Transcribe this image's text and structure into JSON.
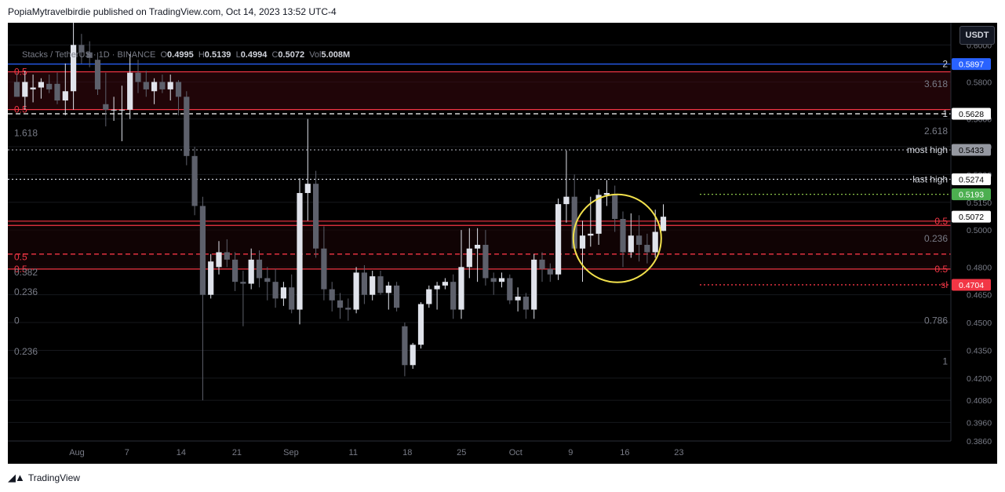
{
  "header": {
    "text": "PopiaMytravelbirdie published on TradingView.com, Oct 14, 2023 13:52 UTC-4"
  },
  "legend": {
    "symbol": "Stacks / TetherUS · 1D · BINANCE",
    "o_label": "O",
    "o": "0.4995",
    "h_label": "H",
    "h": "0.5139",
    "l_label": "L",
    "l": "0.4994",
    "c_label": "C",
    "c": "0.5072",
    "vol_label": "Vol",
    "vol": "5.008M"
  },
  "currency_button": "USDT",
  "footer": {
    "brand": "TradingView"
  },
  "colors": {
    "up": "#e0e3eb",
    "down": "#5d606b",
    "accent_red": "#f23645",
    "accent_blue": "#2962ff",
    "accent_green": "#4caf50",
    "circle": "#f2e14c",
    "background": "#000000"
  },
  "price_badges": [
    {
      "value": "0.5897",
      "color": "#2962ff",
      "text_color": "#ffffff"
    },
    {
      "value": "0.5628",
      "color": "#ffffff",
      "text_color": "#000000"
    },
    {
      "value": "0.5433",
      "color": "#9598a1",
      "text_color": "#000000"
    },
    {
      "value": "0.5274",
      "color": "#ffffff",
      "text_color": "#000000"
    },
    {
      "value": "0.5193",
      "color": "#4caf50",
      "text_color": "#ffffff"
    },
    {
      "value": "0.5072",
      "color": "#ffffff",
      "text_color": "#000000"
    },
    {
      "value": "0.4704",
      "color": "#f23645",
      "text_color": "#ffffff"
    }
  ],
  "level_labels": [
    {
      "text": "most high",
      "price": 0.5433
    },
    {
      "text": "last high",
      "price": 0.5274
    }
  ],
  "fib_labels_left": [
    {
      "text": "0.5",
      "price": 0.5855,
      "color": "#f23645"
    },
    {
      "text": "0.5",
      "price": 0.5651,
      "color": "#f23645"
    },
    {
      "text": "1.618",
      "price": 0.5525,
      "color": "#787b86"
    },
    {
      "text": "0.5",
      "price": 0.4855,
      "color": "#f23645"
    },
    {
      "text": "0.5",
      "price": 0.4789,
      "color": "#f23645"
    },
    {
      "text": "0.382",
      "price": 0.4772,
      "color": "#787b86"
    },
    {
      "text": "0.236",
      "price": 0.4665,
      "color": "#787b86"
    },
    {
      "text": "0",
      "price": 0.451,
      "color": "#787b86"
    },
    {
      "text": "0.236",
      "price": 0.4343,
      "color": "#787b86"
    }
  ],
  "fib_labels_right": [
    {
      "text": "2",
      "price": 0.5897,
      "color": "#d1d4dc"
    },
    {
      "text": "3.618",
      "price": 0.579,
      "color": "#787b86"
    },
    {
      "text": "1",
      "price": 0.5628,
      "color": "#d1d4dc"
    },
    {
      "text": "2.618",
      "price": 0.5535,
      "color": "#787b86"
    },
    {
      "text": "0.5",
      "price": 0.5048,
      "color": "#f23645"
    },
    {
      "text": "0.236",
      "price": 0.4955,
      "color": "#787b86"
    },
    {
      "text": "0.5",
      "price": 0.4789,
      "color": "#f23645"
    },
    {
      "text": "sl",
      "price": 0.4704,
      "color": "#f23645"
    },
    {
      "text": "0.786",
      "price": 0.451,
      "color": "#787b86"
    },
    {
      "text": "1",
      "price": 0.429,
      "color": "#787b86"
    }
  ],
  "chart_data": {
    "type": "candlestick",
    "symbol": "Stacks / TetherUS",
    "interval": "1D",
    "exchange": "BINANCE",
    "y_axis_ticks": [
      "0.6000",
      "0.5800",
      "0.5600",
      "0.5450",
      "0.5300",
      "0.5150",
      "0.5000",
      "0.4800",
      "0.4650",
      "0.4500",
      "0.4350",
      "0.4200",
      "0.4080",
      "0.3960",
      "0.3860"
    ],
    "x_axis_ticks": [
      "Aug",
      "7",
      "14",
      "21",
      "Sep",
      "11",
      "18",
      "25",
      "Oct",
      "9",
      "16",
      "23"
    ],
    "ylim": [
      0.386,
      0.612
    ],
    "horizontal_levels": [
      {
        "price": 0.5897,
        "style": "solid",
        "color": "#2962ff"
      },
      {
        "price": 0.5855,
        "style": "solid",
        "color": "#f23645"
      },
      {
        "price": 0.5651,
        "style": "solid",
        "color": "#f23645"
      },
      {
        "price": 0.5628,
        "style": "dashed",
        "color": "#ffffff"
      },
      {
        "price": 0.5433,
        "style": "dotted",
        "color": "#9598a1"
      },
      {
        "price": 0.5274,
        "style": "dotted",
        "color": "#d1d4dc"
      },
      {
        "price": 0.5193,
        "style": "dotted",
        "color": "#8bc34a"
      },
      {
        "price": 0.5048,
        "style": "solid",
        "color": "#f23645"
      },
      {
        "price": 0.5025,
        "style": "solid",
        "color": "#f23645"
      },
      {
        "price": 0.487,
        "style": "dashed",
        "color": "#f23645"
      },
      {
        "price": 0.4789,
        "style": "solid",
        "color": "#f23645"
      },
      {
        "price": 0.4704,
        "style": "dotted",
        "color": "#f23645"
      }
    ],
    "candles": [
      {
        "o": 0.58,
        "h": 0.585,
        "l": 0.572,
        "c": 0.572
      },
      {
        "o": 0.572,
        "h": 0.586,
        "l": 0.565,
        "c": 0.58
      },
      {
        "o": 0.576,
        "h": 0.584,
        "l": 0.569,
        "c": 0.577
      },
      {
        "o": 0.577,
        "h": 0.582,
        "l": 0.571,
        "c": 0.58
      },
      {
        "o": 0.579,
        "h": 0.584,
        "l": 0.574,
        "c": 0.576
      },
      {
        "o": 0.579,
        "h": 0.585,
        "l": 0.568,
        "c": 0.57
      },
      {
        "o": 0.57,
        "h": 0.59,
        "l": 0.562,
        "c": 0.575
      },
      {
        "o": 0.575,
        "h": 0.615,
        "l": 0.565,
        "c": 0.6
      },
      {
        "o": 0.6,
        "h": 0.606,
        "l": 0.59,
        "c": 0.596
      },
      {
        "o": 0.596,
        "h": 0.602,
        "l": 0.588,
        "c": 0.593
      },
      {
        "o": 0.592,
        "h": 0.596,
        "l": 0.573,
        "c": 0.576
      },
      {
        "o": 0.568,
        "h": 0.585,
        "l": 0.556,
        "c": 0.565
      },
      {
        "o": 0.565,
        "h": 0.572,
        "l": 0.559,
        "c": 0.565
      },
      {
        "o": 0.565,
        "h": 0.578,
        "l": 0.548,
        "c": 0.565
      },
      {
        "o": 0.565,
        "h": 0.595,
        "l": 0.56,
        "c": 0.585
      },
      {
        "o": 0.585,
        "h": 0.592,
        "l": 0.574,
        "c": 0.58
      },
      {
        "o": 0.58,
        "h": 0.586,
        "l": 0.572,
        "c": 0.576
      },
      {
        "o": 0.575,
        "h": 0.582,
        "l": 0.568,
        "c": 0.58
      },
      {
        "o": 0.58,
        "h": 0.584,
        "l": 0.574,
        "c": 0.576
      },
      {
        "o": 0.576,
        "h": 0.584,
        "l": 0.57,
        "c": 0.58
      },
      {
        "o": 0.58,
        "h": 0.581,
        "l": 0.562,
        "c": 0.572
      },
      {
        "o": 0.572,
        "h": 0.575,
        "l": 0.535,
        "c": 0.54
      },
      {
        "o": 0.54,
        "h": 0.545,
        "l": 0.508,
        "c": 0.513
      },
      {
        "o": 0.513,
        "h": 0.518,
        "l": 0.408,
        "c": 0.465
      },
      {
        "o": 0.465,
        "h": 0.487,
        "l": 0.463,
        "c": 0.483
      },
      {
        "o": 0.48,
        "h": 0.494,
        "l": 0.476,
        "c": 0.488
      },
      {
        "o": 0.488,
        "h": 0.495,
        "l": 0.48,
        "c": 0.484
      },
      {
        "o": 0.484,
        "h": 0.488,
        "l": 0.467,
        "c": 0.472
      },
      {
        "o": 0.472,
        "h": 0.478,
        "l": 0.448,
        "c": 0.471
      },
      {
        "o": 0.471,
        "h": 0.49,
        "l": 0.468,
        "c": 0.484
      },
      {
        "o": 0.484,
        "h": 0.489,
        "l": 0.469,
        "c": 0.474
      },
      {
        "o": 0.474,
        "h": 0.48,
        "l": 0.462,
        "c": 0.472
      },
      {
        "o": 0.472,
        "h": 0.479,
        "l": 0.458,
        "c": 0.463
      },
      {
        "o": 0.463,
        "h": 0.472,
        "l": 0.459,
        "c": 0.469
      },
      {
        "o": 0.469,
        "h": 0.476,
        "l": 0.455,
        "c": 0.457
      },
      {
        "o": 0.457,
        "h": 0.528,
        "l": 0.449,
        "c": 0.52
      },
      {
        "o": 0.52,
        "h": 0.56,
        "l": 0.505,
        "c": 0.525
      },
      {
        "o": 0.525,
        "h": 0.532,
        "l": 0.485,
        "c": 0.49
      },
      {
        "o": 0.49,
        "h": 0.502,
        "l": 0.462,
        "c": 0.468
      },
      {
        "o": 0.468,
        "h": 0.472,
        "l": 0.456,
        "c": 0.462
      },
      {
        "o": 0.462,
        "h": 0.466,
        "l": 0.452,
        "c": 0.458
      },
      {
        "o": 0.458,
        "h": 0.463,
        "l": 0.451,
        "c": 0.457
      },
      {
        "o": 0.457,
        "h": 0.48,
        "l": 0.455,
        "c": 0.477
      },
      {
        "o": 0.477,
        "h": 0.481,
        "l": 0.46,
        "c": 0.465
      },
      {
        "o": 0.465,
        "h": 0.478,
        "l": 0.462,
        "c": 0.475
      },
      {
        "o": 0.475,
        "h": 0.478,
        "l": 0.465,
        "c": 0.466
      },
      {
        "o": 0.466,
        "h": 0.472,
        "l": 0.457,
        "c": 0.47
      },
      {
        "o": 0.47,
        "h": 0.472,
        "l": 0.456,
        "c": 0.458
      },
      {
        "o": 0.448,
        "h": 0.45,
        "l": 0.421,
        "c": 0.427
      },
      {
        "o": 0.427,
        "h": 0.439,
        "l": 0.425,
        "c": 0.438
      },
      {
        "o": 0.438,
        "h": 0.461,
        "l": 0.436,
        "c": 0.46
      },
      {
        "o": 0.46,
        "h": 0.47,
        "l": 0.458,
        "c": 0.468
      },
      {
        "o": 0.468,
        "h": 0.472,
        "l": 0.457,
        "c": 0.47
      },
      {
        "o": 0.47,
        "h": 0.474,
        "l": 0.468,
        "c": 0.472
      },
      {
        "o": 0.472,
        "h": 0.476,
        "l": 0.452,
        "c": 0.457
      },
      {
        "o": 0.457,
        "h": 0.5,
        "l": 0.452,
        "c": 0.48
      },
      {
        "o": 0.48,
        "h": 0.501,
        "l": 0.474,
        "c": 0.49
      },
      {
        "o": 0.49,
        "h": 0.501,
        "l": 0.472,
        "c": 0.492
      },
      {
        "o": 0.492,
        "h": 0.5,
        "l": 0.47,
        "c": 0.474
      },
      {
        "o": 0.474,
        "h": 0.477,
        "l": 0.465,
        "c": 0.472
      },
      {
        "o": 0.472,
        "h": 0.477,
        "l": 0.469,
        "c": 0.474
      },
      {
        "o": 0.474,
        "h": 0.476,
        "l": 0.46,
        "c": 0.462
      },
      {
        "o": 0.462,
        "h": 0.469,
        "l": 0.456,
        "c": 0.464
      },
      {
        "o": 0.464,
        "h": 0.466,
        "l": 0.452,
        "c": 0.457
      },
      {
        "o": 0.457,
        "h": 0.487,
        "l": 0.452,
        "c": 0.484
      },
      {
        "o": 0.484,
        "h": 0.488,
        "l": 0.472,
        "c": 0.479
      },
      {
        "o": 0.479,
        "h": 0.482,
        "l": 0.472,
        "c": 0.476
      },
      {
        "o": 0.476,
        "h": 0.517,
        "l": 0.473,
        "c": 0.514
      },
      {
        "o": 0.514,
        "h": 0.543,
        "l": 0.504,
        "c": 0.518
      },
      {
        "o": 0.518,
        "h": 0.53,
        "l": 0.49,
        "c": 0.49
      },
      {
        "o": 0.49,
        "h": 0.505,
        "l": 0.472,
        "c": 0.497
      },
      {
        "o": 0.497,
        "h": 0.518,
        "l": 0.491,
        "c": 0.498
      },
      {
        "o": 0.498,
        "h": 0.522,
        "l": 0.492,
        "c": 0.519
      },
      {
        "o": 0.519,
        "h": 0.527,
        "l": 0.513,
        "c": 0.52
      },
      {
        "o": 0.519,
        "h": 0.524,
        "l": 0.499,
        "c": 0.506
      },
      {
        "o": 0.506,
        "h": 0.51,
        "l": 0.48,
        "c": 0.488
      },
      {
        "o": 0.488,
        "h": 0.509,
        "l": 0.485,
        "c": 0.497
      },
      {
        "o": 0.497,
        "h": 0.508,
        "l": 0.483,
        "c": 0.492
      },
      {
        "o": 0.492,
        "h": 0.498,
        "l": 0.482,
        "c": 0.488
      },
      {
        "o": 0.488,
        "h": 0.511,
        "l": 0.485,
        "c": 0.499
      },
      {
        "o": 0.4995,
        "h": 0.5139,
        "l": 0.4994,
        "c": 0.5072
      }
    ],
    "annotations": [
      {
        "type": "circle",
        "color": "#f2e14c",
        "label": ""
      }
    ]
  }
}
